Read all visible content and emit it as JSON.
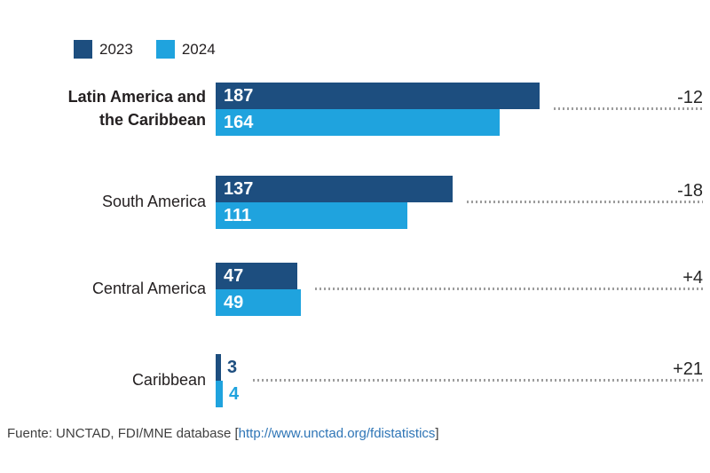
{
  "legend": {
    "items": [
      {
        "label": "2023",
        "color": "#1d4e7f"
      },
      {
        "label": "2024",
        "color": "#1fa3de"
      }
    ],
    "position": "top-left"
  },
  "chart_data": {
    "type": "bar",
    "orientation": "horizontal",
    "title": "",
    "categories": [
      "Latin America and the Caribbean",
      "South America",
      "Central America",
      "Caribbean"
    ],
    "series": [
      {
        "name": "2023",
        "color": "#1d4e7f",
        "values": [
          187,
          137,
          47,
          3
        ]
      },
      {
        "name": "2024",
        "color": "#1fa3de",
        "values": [
          164,
          111,
          49,
          4
        ]
      }
    ],
    "change_labels": [
      "-12",
      "-18",
      "+4",
      "+21"
    ],
    "value_labels": "inside-left, outside for small bars",
    "xlim": [
      0,
      280
    ],
    "grid": false,
    "leader_lines": "dotted, from bar end to change label",
    "legend_position": "top-left"
  },
  "footer": {
    "prefix": "Fuente: UNCTAD, FDI/MNE database [",
    "link": "http://www.unctad.org/fdistatistics",
    "suffix": "]"
  },
  "colors": {
    "bar_2023": "#1d4e7f",
    "bar_2024": "#1fa3de",
    "dotted_line": "#9d9d9d",
    "change_text": "#262626",
    "category_text": "#231f20",
    "footer_text": "#3f3f3f",
    "link": "#2e75b6",
    "background": "#ffffff"
  }
}
